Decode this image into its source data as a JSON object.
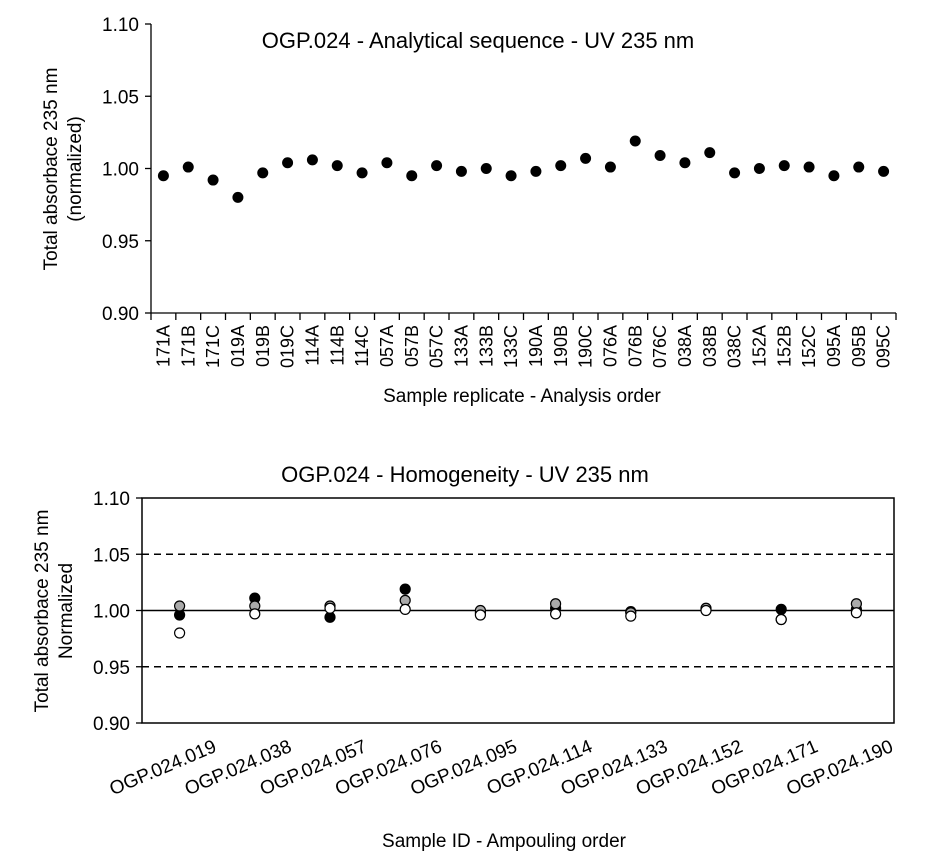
{
  "chart_data": [
    {
      "type": "scatter",
      "title": "OGP.024 - Analytical sequence - UV 235 nm",
      "ylabel": [
        "Total absorbace 235 nm",
        "(normalized)"
      ],
      "xlabel": "Sample replicate - Analysis order",
      "ylim": [
        0.9,
        1.1
      ],
      "yticks": [
        "0.90",
        "0.95",
        "1.00",
        "1.05",
        "1.10"
      ],
      "grid": false,
      "categories": [
        "171A",
        "171B",
        "171C",
        "019A",
        "019B",
        "019C",
        "114A",
        "114B",
        "114C",
        "057A",
        "057B",
        "057C",
        "133A",
        "133B",
        "133C",
        "190A",
        "190B",
        "190C",
        "076A",
        "076B",
        "076C",
        "038A",
        "038B",
        "038C",
        "152A",
        "152B",
        "152C",
        "095A",
        "095B",
        "095C"
      ],
      "values": [
        0.995,
        1.001,
        0.992,
        0.98,
        0.997,
        1.004,
        1.006,
        1.002,
        0.997,
        1.004,
        0.995,
        1.002,
        0.998,
        1.0,
        0.995,
        0.998,
        1.002,
        1.007,
        1.001,
        1.019,
        1.009,
        1.004,
        1.011,
        0.997,
        1.0,
        1.002,
        1.001,
        0.995,
        1.001,
        0.998
      ],
      "marker_color": "#000000"
    },
    {
      "type": "scatter",
      "title": "OGP.024 - Homogeneity - UV 235 nm",
      "ylabel": [
        "Total absorbace 235 nm",
        "Normalized"
      ],
      "xlabel": "Sample ID - Ampouling order",
      "ylim": [
        0.9,
        1.1
      ],
      "yticks": [
        "0.90",
        "0.95",
        "1.00",
        "1.05",
        "1.10"
      ],
      "reference_lines": [
        {
          "y": 1.05,
          "style": "dashed"
        },
        {
          "y": 1.0,
          "style": "solid"
        },
        {
          "y": 0.95,
          "style": "dashed"
        }
      ],
      "categories": [
        "OGP.024.019",
        "OGP.024.038",
        "OGP.024.057",
        "OGP.024.076",
        "OGP.024.095",
        "OGP.024.114",
        "OGP.024.133",
        "OGP.024.152",
        "OGP.024.171",
        "OGP.024.190"
      ],
      "series": [
        {
          "marker": "black",
          "fill": "#000000",
          "values": [
            0.996,
            1.011,
            0.994,
            1.019,
            0.998,
            1.002,
            0.999,
            1.001,
            1.001,
            1.001
          ]
        },
        {
          "marker": "gray",
          "fill": "#aaaaaa",
          "values": [
            1.004,
            1.004,
            1.004,
            1.009,
            1.0,
            1.006,
            0.998,
            1.002,
            0.992,
            1.006
          ]
        },
        {
          "marker": "white",
          "fill": "#ffffff",
          "values": [
            0.98,
            0.997,
            1.002,
            1.001,
            0.996,
            0.997,
            0.995,
            1.0,
            0.992,
            0.998
          ]
        }
      ]
    }
  ]
}
